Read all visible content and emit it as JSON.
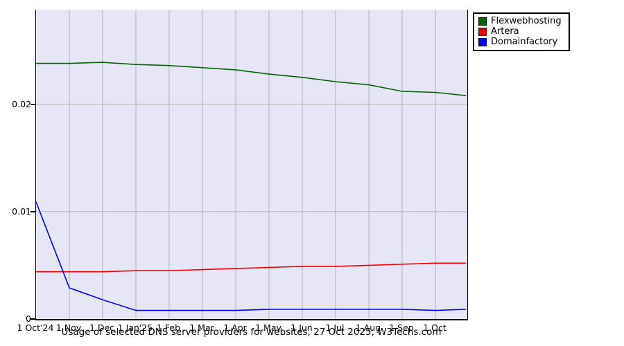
{
  "chart_data": {
    "type": "line",
    "title": "Usage of selected DNS server providers for websites, 27 Oct 2025, W3Techs.com",
    "x_tick_labels": [
      "1 Oct'24",
      "1 Nov",
      "1 Dec",
      "1 Jan'25",
      "1 Feb",
      "1 Mar",
      "1 Apr",
      "1 May",
      "1 Jun",
      "1 Jul",
      "1 Aug",
      "1 Sep",
      "1 Oct"
    ],
    "x_months_since_oct24": [
      0,
      1,
      2,
      3,
      4,
      5,
      6,
      7,
      8,
      9,
      10,
      11,
      12,
      12.92
    ],
    "series": [
      {
        "name": "Flexwebhosting",
        "color": "#006400",
        "values": [
          0.0238,
          0.0238,
          0.0239,
          0.0237,
          0.0236,
          0.0234,
          0.0232,
          0.0228,
          0.0225,
          0.0221,
          0.0218,
          0.0212,
          0.0211,
          0.0208
        ]
      },
      {
        "name": "Artera",
        "color": "#f00000",
        "values": [
          0.0044,
          0.0044,
          0.0044,
          0.0045,
          0.0045,
          0.0046,
          0.0047,
          0.0048,
          0.0049,
          0.0049,
          0.005,
          0.0051,
          0.0052,
          0.0052
        ]
      },
      {
        "name": "Domainfactory",
        "color": "#0000f0",
        "values": [
          0.0109,
          0.0029,
          0.0018,
          0.0008,
          0.0008,
          0.0008,
          0.0008,
          0.0009,
          0.0009,
          0.0009,
          0.0009,
          0.0009,
          0.0008,
          0.0009
        ]
      }
    ],
    "yticks": [
      0,
      0.01,
      0.02
    ],
    "ytick_labels": [
      "0",
      "0.01",
      "0.02"
    ],
    "ylim": [
      0,
      0.0288
    ],
    "grid": true,
    "grid_color": "#bfbfbf",
    "plot_background": "#e6e6f7",
    "legend_position": "top-right",
    "legend": [
      "Flexwebhosting",
      "Artera",
      "Domainfactory"
    ]
  }
}
